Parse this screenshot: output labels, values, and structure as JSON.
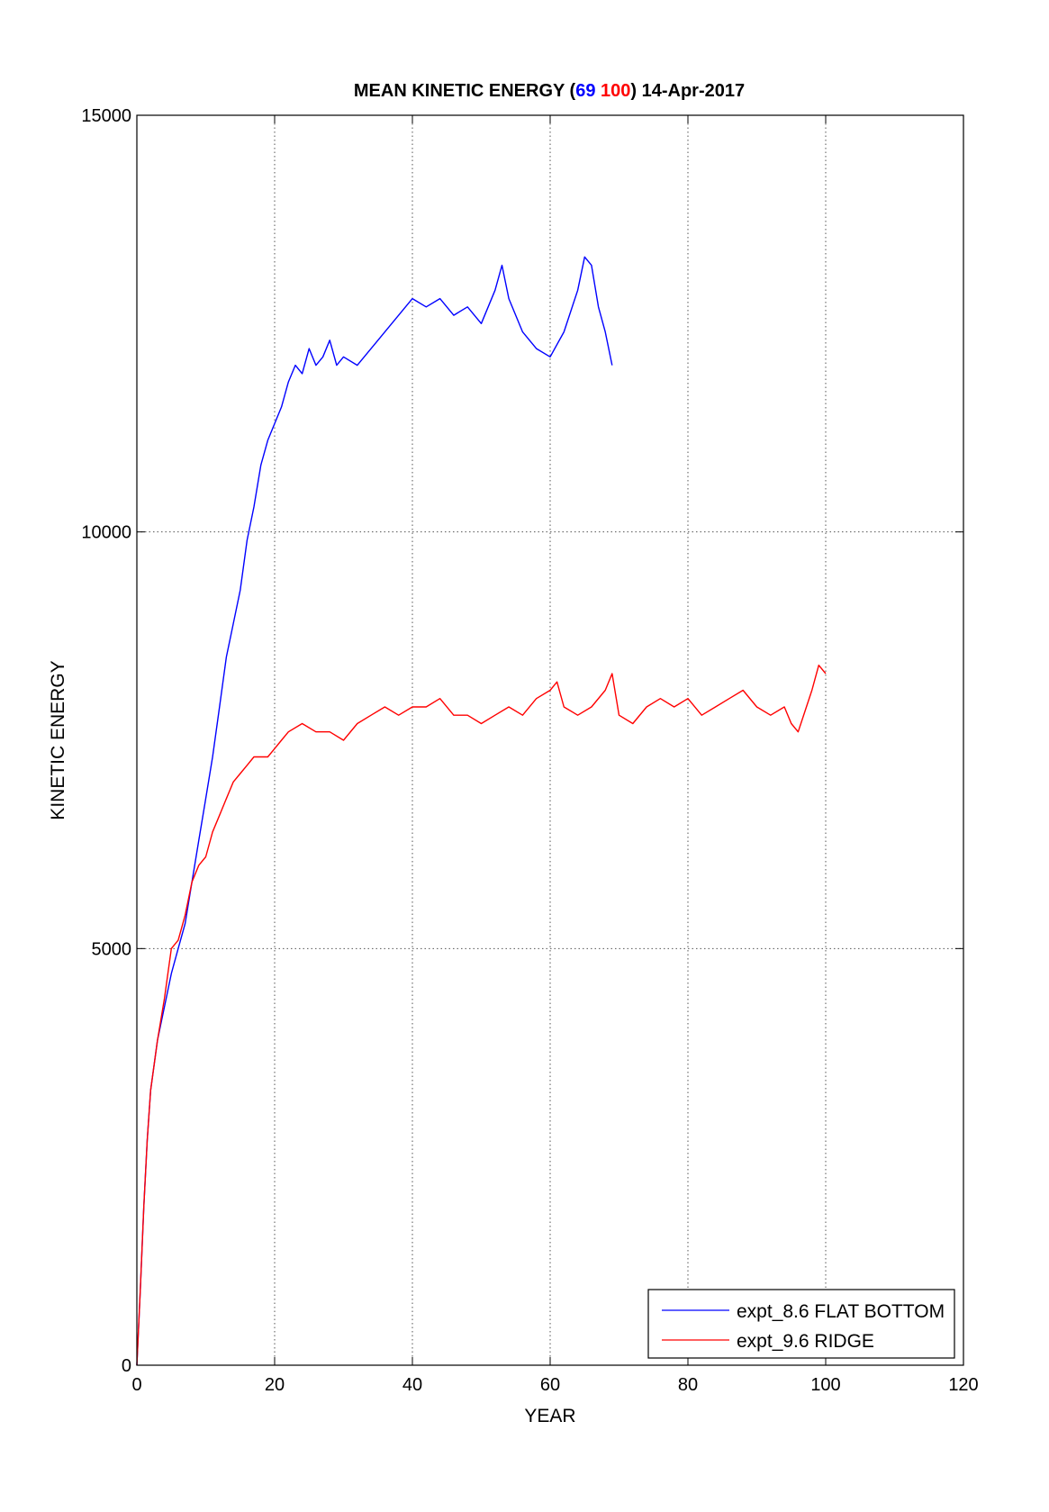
{
  "chart_data": {
    "type": "line",
    "title": {
      "prefix": "MEAN KINETIC ENERGY (",
      "run1": "69",
      "run2": "100",
      "suffix": ") 14-Apr-2017",
      "run1_color": "#0000ff",
      "run2_color": "#ff0000"
    },
    "xlabel": "YEAR",
    "ylabel": "KINETIC ENERGY",
    "xlim": [
      0,
      120
    ],
    "ylim": [
      0,
      15000
    ],
    "xticks": [
      "0",
      "20",
      "40",
      "60",
      "80",
      "100",
      "120"
    ],
    "yticks": [
      "0",
      "5000",
      "10000",
      "15000"
    ],
    "grid": true,
    "legend_position": "bottom-right",
    "series": [
      {
        "name": "expt_8.6 FLAT BOTTOM",
        "color": "#0000ff",
        "x": [
          0,
          0.5,
          1,
          1.5,
          2,
          3,
          4,
          5,
          6,
          7,
          8,
          9,
          10,
          11,
          12,
          13,
          14,
          15,
          16,
          17,
          18,
          19,
          20,
          21,
          22,
          23,
          24,
          25,
          26,
          27,
          28,
          29,
          30,
          32,
          34,
          36,
          38,
          40,
          42,
          44,
          46,
          48,
          50,
          52,
          53,
          54,
          56,
          58,
          60,
          62,
          64,
          65,
          66,
          67,
          68,
          69
        ],
        "y": [
          0,
          900,
          1900,
          2700,
          3300,
          3900,
          4300,
          4700,
          5000,
          5300,
          5800,
          6300,
          6800,
          7300,
          7900,
          8500,
          8900,
          9300,
          9900,
          10300,
          10800,
          11100,
          11300,
          11500,
          11800,
          12000,
          11900,
          12200,
          12000,
          12100,
          12300,
          12000,
          12100,
          12000,
          12200,
          12400,
          12600,
          12800,
          12700,
          12800,
          12600,
          12700,
          12500,
          12900,
          13200,
          12800,
          12400,
          12200,
          12100,
          12400,
          12900,
          13300,
          13200,
          12700,
          12400,
          12000
        ]
      },
      {
        "name": "expt_9.6 RIDGE",
        "color": "#ff0000",
        "x": [
          0,
          0.5,
          1,
          1.5,
          2,
          3,
          4,
          5,
          6,
          7,
          8,
          9,
          10,
          11,
          12,
          13,
          14,
          15,
          16,
          17,
          18,
          19,
          20,
          21,
          22,
          24,
          26,
          28,
          30,
          32,
          34,
          36,
          38,
          40,
          42,
          44,
          46,
          48,
          50,
          52,
          54,
          56,
          58,
          60,
          61,
          62,
          64,
          66,
          68,
          69,
          70,
          72,
          74,
          76,
          78,
          80,
          82,
          84,
          86,
          88,
          90,
          92,
          94,
          95,
          96,
          98,
          99,
          100
        ],
        "y": [
          0,
          900,
          1900,
          2700,
          3300,
          3900,
          4400,
          5000,
          5100,
          5400,
          5800,
          6000,
          6100,
          6400,
          6600,
          6800,
          7000,
          7100,
          7200,
          7300,
          7300,
          7300,
          7400,
          7500,
          7600,
          7700,
          7600,
          7600,
          7500,
          7700,
          7800,
          7900,
          7800,
          7900,
          7900,
          8000,
          7800,
          7800,
          7700,
          7800,
          7900,
          7800,
          8000,
          8100,
          8200,
          7900,
          7800,
          7900,
          8100,
          8300,
          7800,
          7700,
          7900,
          8000,
          7900,
          8000,
          7800,
          7900,
          8000,
          8100,
          7900,
          7800,
          7900,
          7700,
          7600,
          8100,
          8400,
          8300
        ]
      }
    ]
  }
}
